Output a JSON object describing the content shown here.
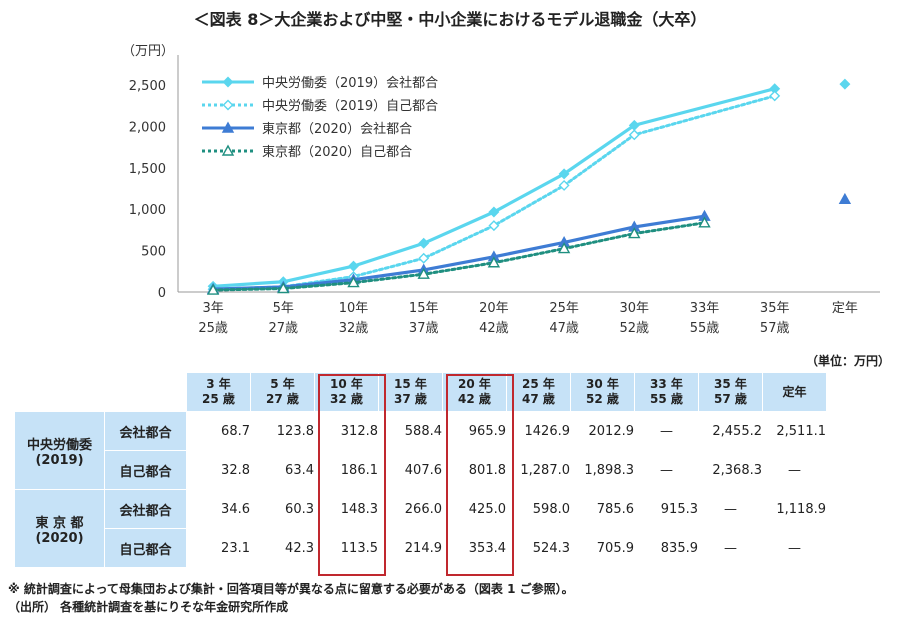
{
  "title": "＜図表 8＞大企業および中堅・中小企業におけるモデル退職金（大卒）",
  "chart_data": {
    "type": "line",
    "ylabel": "（万円）",
    "ylim": [
      0,
      2500
    ],
    "yticks": [
      "0",
      "500",
      "1,000",
      "1,500",
      "2,000",
      "2,500"
    ],
    "categories": [
      [
        "3年",
        "25歳"
      ],
      [
        "5年",
        "27歳"
      ],
      [
        "10年",
        "32歳"
      ],
      [
        "15年",
        "37歳"
      ],
      [
        "20年",
        "42歳"
      ],
      [
        "25年",
        "47歳"
      ],
      [
        "30年",
        "52歳"
      ],
      [
        "33年",
        "55歳"
      ],
      [
        "35年",
        "57歳"
      ],
      [
        "定年",
        ""
      ]
    ],
    "series": [
      {
        "name": "中央労働委（2019）会社都合",
        "color": "#5ad6ee",
        "dashed": false,
        "marker": "diamond",
        "values": [
          68.7,
          123.8,
          312.8,
          588.4,
          965.9,
          1426.9,
          2012.9,
          null,
          2455.2,
          2511.1
        ]
      },
      {
        "name": "中央労働委（2019）自己都合",
        "color": "#5ad6ee",
        "dashed": true,
        "marker": "diamond-open",
        "values": [
          32.8,
          63.4,
          186.1,
          407.6,
          801.8,
          1287.0,
          1898.3,
          null,
          2368.3,
          null
        ]
      },
      {
        "name": "東京都（2020）会社都合",
        "color": "#3e7cd4",
        "dashed": false,
        "marker": "triangle",
        "values": [
          34.6,
          60.3,
          148.3,
          266.0,
          425.0,
          598.0,
          785.6,
          915.3,
          null,
          1118.9
        ]
      },
      {
        "name": "東京都（2020）自己都合",
        "color": "#1f8f80",
        "dashed": true,
        "marker": "triangle-open",
        "values": [
          23.1,
          42.3,
          113.5,
          214.9,
          353.4,
          524.3,
          705.9,
          835.9,
          null,
          null
        ]
      }
    ],
    "legend": "top-left"
  },
  "table": {
    "unit": "（単位：万円）",
    "columns": [
      [
        "3 年",
        "25 歳"
      ],
      [
        "5 年",
        "27 歳"
      ],
      [
        "10 年",
        "32 歳"
      ],
      [
        "15 年",
        "37 歳"
      ],
      [
        "20 年",
        "42 歳"
      ],
      [
        "25 年",
        "47 歳"
      ],
      [
        "30 年",
        "52 歳"
      ],
      [
        "33 年",
        "55 歳"
      ],
      [
        "35 年",
        "57 歳"
      ],
      [
        "定年",
        ""
      ]
    ],
    "groups": [
      {
        "name": "中央労働委",
        "sub": "(2019)",
        "rows": [
          {
            "label": "会社都合",
            "cells": [
              "68.7",
              "123.8",
              "312.8",
              "588.4",
              "965.9",
              "1426.9",
              "2012.9",
              "—",
              "2,455.2",
              "2,511.1"
            ]
          },
          {
            "label": "自己都合",
            "cells": [
              "32.8",
              "63.4",
              "186.1",
              "407.6",
              "801.8",
              "1,287.0",
              "1,898.3",
              "—",
              "2,368.3",
              "—"
            ]
          }
        ]
      },
      {
        "name": "東 京 都",
        "sub": "(2020)",
        "rows": [
          {
            "label": "会社都合",
            "cells": [
              "34.6",
              "60.3",
              "148.3",
              "266.0",
              "425.0",
              "598.0",
              "785.6",
              "915.3",
              "—",
              "1,118.9"
            ]
          },
          {
            "label": "自己都合",
            "cells": [
              "23.1",
              "42.3",
              "113.5",
              "214.9",
              "353.4",
              "524.3",
              "705.9",
              "835.9",
              "—",
              "—"
            ]
          }
        ]
      }
    ]
  },
  "notes": [
    "※ 統計調査によって母集団および集計・回答項目等が異なる点に留意する必要がある（図表 1 ご参照）。",
    "（出所） 各種統計調査を基にりそな年金研究所作成"
  ]
}
